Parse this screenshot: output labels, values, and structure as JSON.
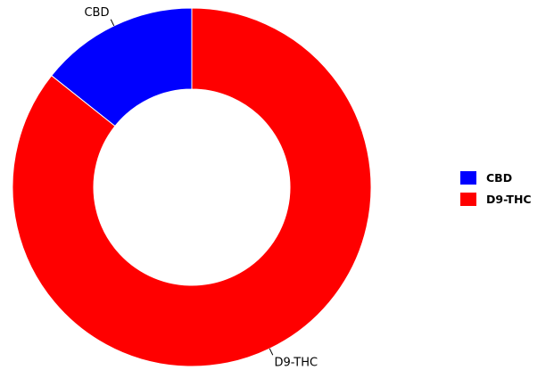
{
  "chart_data": {
    "type": "pie",
    "donut": true,
    "categories": [
      "CBD",
      "D9-THC"
    ],
    "values": [
      14.3,
      85.7
    ],
    "colors": [
      "#0000ff",
      "#ff0000"
    ],
    "legend_position": "right",
    "title": ""
  }
}
